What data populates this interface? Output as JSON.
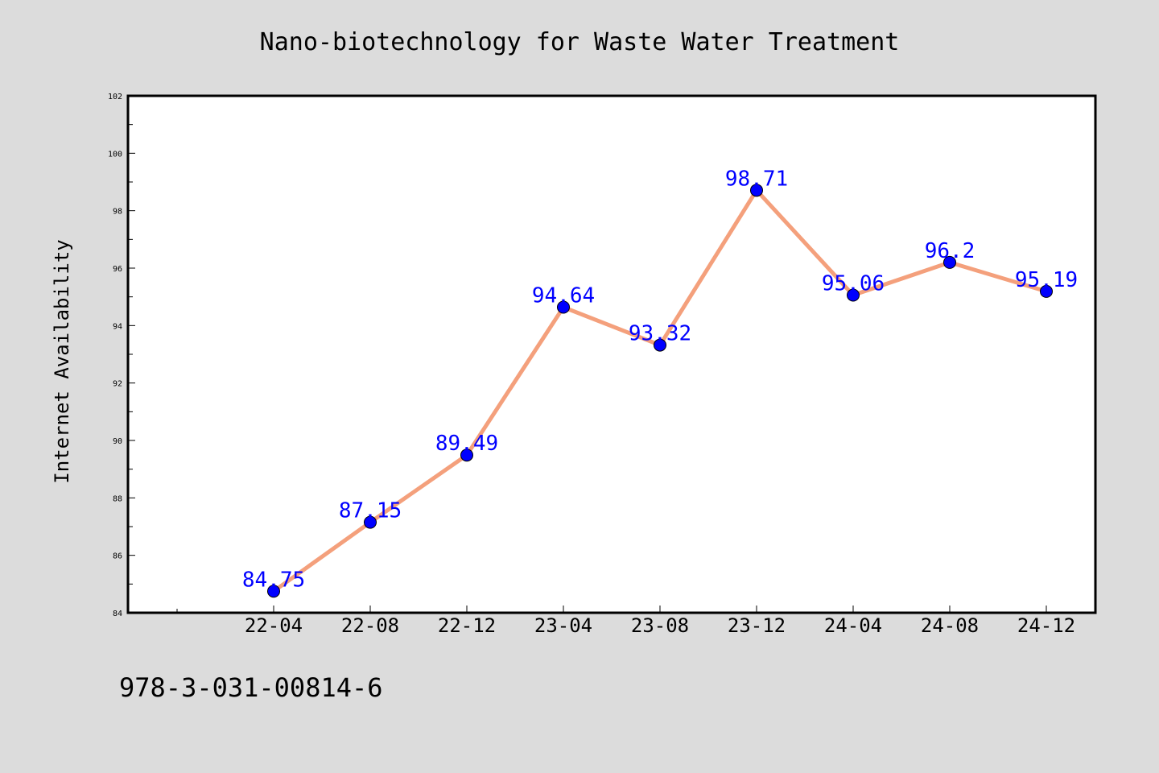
{
  "chart_data": {
    "type": "line",
    "title": "Nano-biotechnology for Waste Water Treatment",
    "xlabel": "",
    "ylabel": "Internet Availability",
    "categories": [
      "22-04",
      "22-08",
      "22-12",
      "23-04",
      "23-08",
      "23-12",
      "24-04",
      "24-08",
      "24-12"
    ],
    "series": [
      {
        "values": [
          84.75,
          87.15,
          89.49,
          94.64,
          93.32,
          98.71,
          95.06,
          96.2,
          95.19
        ],
        "data_labels": [
          "84.75",
          "87.15",
          "89.49",
          "94.64",
          "93.32",
          "98.71",
          "95.06",
          "96.2",
          "95.19"
        ]
      }
    ],
    "ylim": [
      84,
      102
    ],
    "yticks": [
      84,
      86,
      88,
      90,
      92,
      94,
      96,
      98,
      100,
      102
    ],
    "grid": false,
    "legend": "none",
    "colors": {
      "line": "#f4a07c",
      "marker": "#0000ff",
      "data_label": "#0000ff",
      "figure_background": "#dcdcdc",
      "plot_background": "#ffffff"
    }
  },
  "footer": {
    "isbn": "978-3-031-00814-6"
  }
}
